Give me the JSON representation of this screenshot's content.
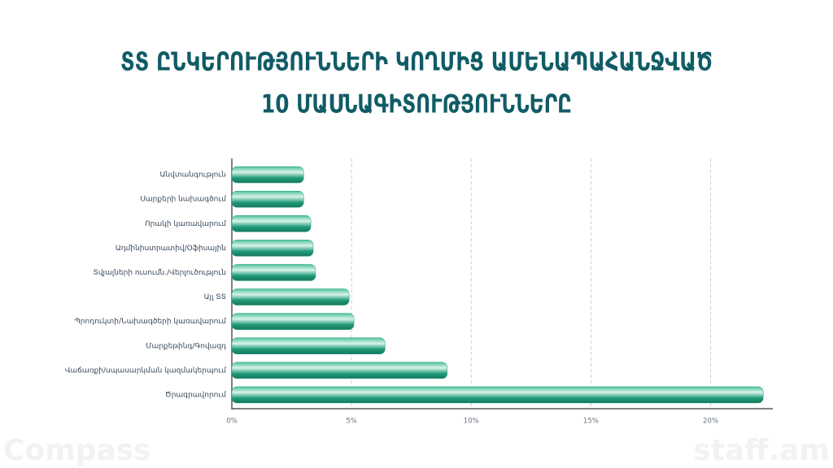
{
  "chart_data": {
    "type": "barh",
    "title": [
      "ՏՏ ԸՆԿԵՐՈՒԹՅՈՒՆՆԵՐԻ ԿՈՂՄԻՑ ԱՄԵՆԱՊԱՀԱՆՋՎԱԾ",
      "10 ՄԱՍՆԱԳԻՏՈՒԹՅՈՒՆՆԵՐԸ"
    ],
    "categories": [
      "Անվտանգություն",
      "Սարքերի նախագծում",
      "Որակի կառավարում",
      "Ադմինիստրատիվ/Օֆիսային",
      "Տվյալների ուսումն./Վերլուծություն",
      "Այլ ՏՏ",
      "Պրոդուկտի/Նախագծերի կառավարում",
      "Մարքեթինգ/Գովազդ",
      "Վաճառքի/սպասարկման կազմակերպում",
      "Ծրագրավորում"
    ],
    "values": [
      3.0,
      3.0,
      3.3,
      3.4,
      3.5,
      4.9,
      5.1,
      6.4,
      9.0,
      22.2
    ],
    "color": "#1f9a78",
    "xlim": [
      0,
      22.6
    ],
    "xticks": [
      {
        "value": 0,
        "label": "0%"
      },
      {
        "value": 5,
        "label": "5%"
      },
      {
        "value": 10,
        "label": "10%"
      },
      {
        "value": 15,
        "label": "15%"
      },
      {
        "value": 20,
        "label": "20%"
      }
    ],
    "grid": true
  },
  "watermarks": [
    "Compass",
    "staff.am"
  ]
}
